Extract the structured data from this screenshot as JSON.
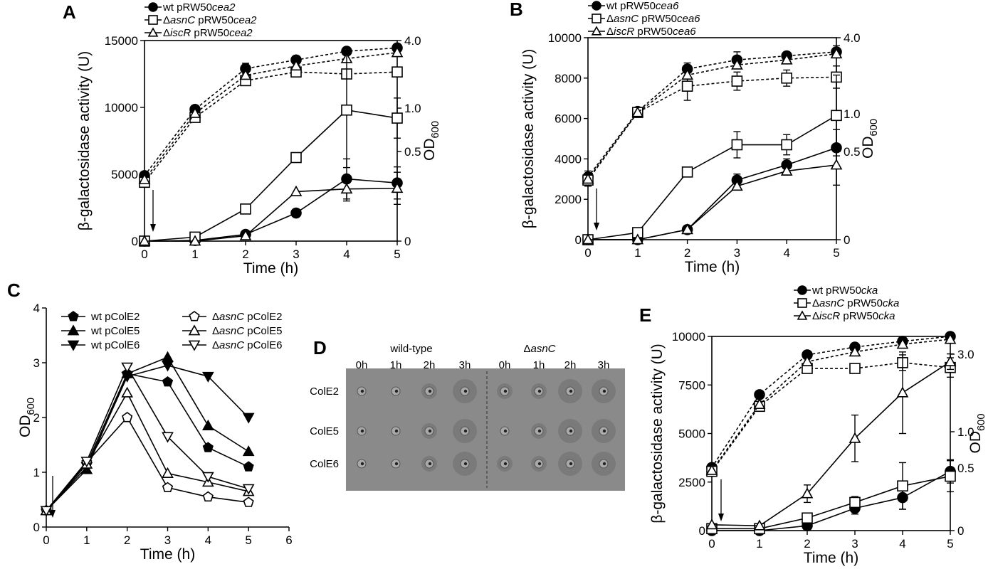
{
  "chart_data": [
    {
      "panel": "A",
      "type": "line",
      "xlabel": "Time (h)",
      "ylabel": "β-galactosidase activity (U)",
      "y2label": "OD600",
      "x": [
        0,
        1,
        2,
        3,
        4,
        5
      ],
      "xlim": [
        0,
        5
      ],
      "xticks": [
        "0",
        "1",
        "2",
        "3",
        "4",
        "5"
      ],
      "ylim": [
        0,
        15000
      ],
      "yticks": [
        "0",
        "5000",
        "10000",
        "15000"
      ],
      "y2ticks": [
        "0",
        "0.5",
        "1.0",
        "4.0"
      ],
      "series": [
        {
          "name": "wt pRW50cea2",
          "marker": "circle-filled",
          "values": [
            0,
            50,
            500,
            2100,
            4650,
            4350
          ],
          "err": [
            0,
            0,
            0,
            0,
            1500,
            1200
          ]
        },
        {
          "name": "ΔasnC pRW50cea2",
          "marker": "square-open",
          "values": [
            0,
            300,
            2400,
            6250,
            9800,
            9200
          ],
          "err": [
            0,
            0,
            200,
            0,
            4300,
            1500
          ]
        },
        {
          "name": "ΔiscR pRW50cea2",
          "marker": "triangle-open",
          "values": [
            0,
            0,
            400,
            3700,
            3900,
            3950
          ],
          "err": [
            0,
            0,
            0,
            0,
            900,
            1200
          ]
        }
      ],
      "od_series": [
        {
          "marker": "circle-filled",
          "values": [
            4900,
            9850,
            12900,
            13550,
            14200,
            14450
          ],
          "err": [
            0,
            0,
            400,
            0,
            0,
            250
          ]
        },
        {
          "marker": "square-open",
          "values": [
            4400,
            9250,
            12000,
            12650,
            12500,
            12650
          ],
          "err": [
            0,
            0,
            0,
            0,
            0,
            0
          ]
        },
        {
          "marker": "triangle-open",
          "values": [
            4600,
            9550,
            12400,
            13100,
            13650,
            14100
          ],
          "err": [
            0,
            0,
            0,
            0,
            0,
            0
          ]
        }
      ]
    },
    {
      "panel": "B",
      "type": "line",
      "xlabel": "Time (h)",
      "ylabel": "β-galactosidase activity (U)",
      "y2label": "OD600",
      "x": [
        0,
        1,
        2,
        3,
        4,
        5
      ],
      "xlim": [
        0,
        5
      ],
      "xticks": [
        "0",
        "1",
        "2",
        "3",
        "4",
        "5"
      ],
      "ylim": [
        0,
        10000
      ],
      "yticks": [
        "0",
        "2000",
        "4000",
        "6000",
        "8000",
        "10000"
      ],
      "y2ticks": [
        "0",
        "0.5",
        "1.0",
        "4.0"
      ],
      "series": [
        {
          "name": "wt pRW50cea6",
          "marker": "circle-filled",
          "values": [
            0,
            0,
            500,
            2950,
            3700,
            4550
          ],
          "err": [
            0,
            0,
            0,
            300,
            300,
            900
          ]
        },
        {
          "name": "ΔasnC pRW50cea6",
          "marker": "square-open",
          "values": [
            0,
            350,
            3350,
            4700,
            4700,
            6150
          ],
          "err": [
            0,
            0,
            0,
            650,
            500,
            2000
          ]
        },
        {
          "name": "ΔiscR pRW50cea6",
          "marker": "triangle-open",
          "values": [
            0,
            0,
            500,
            2650,
            3400,
            3700
          ],
          "err": [
            0,
            0,
            0,
            0,
            200,
            1000
          ]
        }
      ],
      "od_series": [
        {
          "marker": "circle-filled",
          "values": [
            3100,
            6350,
            8450,
            8900,
            9100,
            9300
          ],
          "err": [
            300,
            0,
            300,
            400,
            0,
            300
          ]
        },
        {
          "marker": "square-open",
          "values": [
            2950,
            6300,
            7600,
            7850,
            8000,
            8050
          ],
          "err": [
            300,
            0,
            700,
            450,
            400,
            550
          ]
        },
        {
          "marker": "triangle-open",
          "values": [
            3000,
            6300,
            8150,
            8650,
            8900,
            9200
          ],
          "err": [
            0,
            0,
            0,
            0,
            0,
            0
          ]
        }
      ]
    },
    {
      "panel": "C",
      "type": "line",
      "xlabel": "Time (h)",
      "ylabel": "OD600",
      "x": [
        0,
        1,
        2,
        3,
        4,
        5
      ],
      "xlim": [
        0,
        6
      ],
      "xticks": [
        "0",
        "1",
        "2",
        "3",
        "4",
        "5",
        "6"
      ],
      "ylim": [
        0,
        4
      ],
      "yticks": [
        "0",
        "1",
        "2",
        "3",
        "4"
      ],
      "series": [
        {
          "name": "wt pColE2",
          "marker": "pentagon-filled",
          "values": [
            0.3,
            1.15,
            2.8,
            2.65,
            1.45,
            1.1
          ]
        },
        {
          "name": "wt pColE5",
          "marker": "triangle-up-filled",
          "values": [
            0.3,
            1.05,
            2.8,
            3.1,
            1.85,
            1.38
          ]
        },
        {
          "name": "wt pColE6",
          "marker": "triangle-down-filled",
          "values": [
            0.3,
            1.1,
            2.75,
            2.95,
            2.75,
            2.0
          ]
        },
        {
          "name": "ΔasnC pColE2",
          "marker": "pentagon-open",
          "values": [
            0.3,
            1.18,
            2.0,
            0.72,
            0.55,
            0.45
          ]
        },
        {
          "name": "ΔasnC pColE5",
          "marker": "triangle-up-open",
          "values": [
            0.3,
            1.15,
            2.45,
            0.98,
            0.82,
            0.65
          ]
        },
        {
          "name": "ΔasnC pColE6",
          "marker": "triangle-down-open",
          "values": [
            0.3,
            1.2,
            2.92,
            1.65,
            0.92,
            0.7
          ]
        }
      ]
    },
    {
      "panel": "E",
      "type": "line",
      "xlabel": "Time (h)",
      "ylabel": "β-galactosidase activity (U)",
      "y2label": "OD600",
      "x": [
        0,
        1,
        2,
        3,
        4,
        5
      ],
      "xlim": [
        0,
        5
      ],
      "xticks": [
        "0",
        "1",
        "2",
        "3",
        "4",
        "5"
      ],
      "ylim": [
        0,
        10000
      ],
      "yticks": [
        "0",
        "2500",
        "5000",
        "7500",
        "10000"
      ],
      "y2ticks": [
        "0",
        "0.5",
        "1.0",
        "3.0"
      ],
      "series": [
        {
          "name": "wt pRW50cka",
          "marker": "circle-filled",
          "values": [
            0,
            0,
            250,
            1150,
            1700,
            3050
          ],
          "err": [
            0,
            0,
            0,
            300,
            600,
            600
          ]
        },
        {
          "name": "ΔasnC pRW50cka",
          "marker": "square-open",
          "values": [
            100,
            100,
            650,
            1450,
            2300,
            2800
          ],
          "err": [
            0,
            0,
            0,
            300,
            1200,
            800
          ]
        },
        {
          "name": "ΔiscR pRW50cka",
          "marker": "triangle-open",
          "values": [
            300,
            250,
            1900,
            4750,
            7100,
            8700
          ],
          "err": [
            0,
            0,
            450,
            1200,
            2100,
            400
          ]
        }
      ],
      "od_series": [
        {
          "marker": "circle-filled",
          "values": [
            3250,
            7000,
            9050,
            9450,
            9750,
            10000
          ],
          "err": [
            0,
            0,
            0,
            0,
            0,
            0
          ]
        },
        {
          "marker": "square-open",
          "values": [
            3050,
            6400,
            8350,
            8350,
            8650,
            8400
          ],
          "err": [
            0,
            0,
            0,
            0,
            400,
            500
          ]
        },
        {
          "marker": "triangle-open",
          "values": [
            3100,
            6500,
            8700,
            9200,
            9600,
            9850
          ],
          "err": [
            0,
            0,
            0,
            0,
            0,
            0
          ]
        }
      ]
    }
  ],
  "panel_d": {
    "label": "D",
    "group_left": "wild-type",
    "group_right": "ΔasnC",
    "columns": [
      "0h",
      "1h",
      "2h",
      "3h",
      "0h",
      "1h",
      "2h",
      "3h"
    ],
    "rows": [
      "ColE2",
      "ColE5",
      "ColE6"
    ],
    "halo_sizes": [
      [
        0,
        0,
        1,
        2,
        1,
        1,
        2,
        2
      ],
      [
        0,
        0,
        1,
        2,
        0,
        1,
        2,
        2
      ],
      [
        0,
        0,
        1,
        2,
        1,
        1,
        2,
        2
      ]
    ]
  },
  "colors": {
    "ink": "#000000",
    "plate": "#8a8a8a",
    "halo": "#7a7a7a",
    "colony": "#a9a9a9"
  }
}
